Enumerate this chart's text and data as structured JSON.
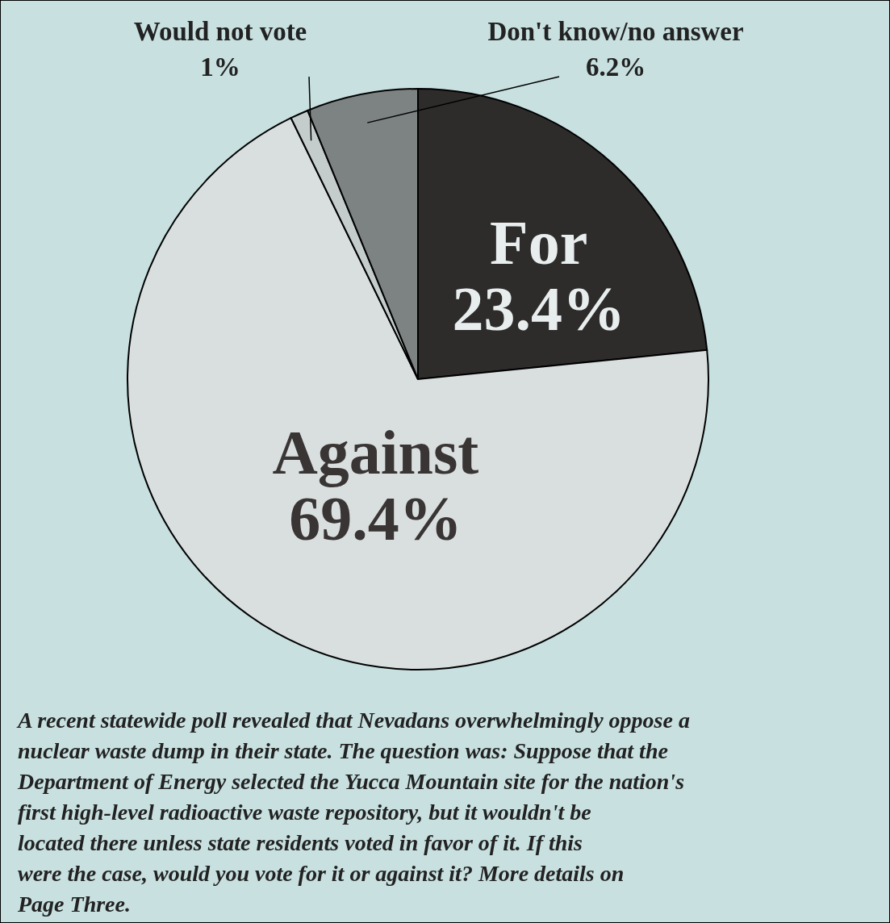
{
  "chart_data": {
    "type": "pie",
    "categories": [
      "For",
      "Against",
      "Would not vote",
      "Don't know/no answer"
    ],
    "values": [
      23.4,
      69.4,
      1,
      6.2
    ],
    "value_labels": [
      "23.4%",
      "69.4%",
      "1%",
      "6.2%"
    ],
    "colors": [
      "#2e2b2b",
      "#d9dfdf",
      "#c4cccc",
      "#7d8282"
    ],
    "legend": false,
    "annotations": [
      "A recent statewide poll revealed that Nevadans overwhelmingly oppose a nuclear waste dump in their state. The question was: Suppose that the Department of Energy selected the Yucca Mountain site for the nation's first high-level radioactive waste repository, but it wouldn't be located there unless state residents voted in favor of it. If this were the case, would you vote for it or against it? More details on Page Three."
    ]
  }
}
